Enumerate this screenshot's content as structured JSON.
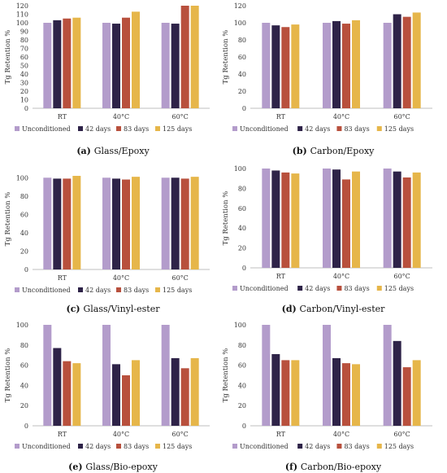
{
  "colors": {
    "Unconditioned": "#b39ccb",
    "42 days": "#2e2348",
    "83 days": "#b8503d",
    "125 days": "#e6b64a",
    "gridline": "#d9d9d9",
    "axis": "#bfbfbf"
  },
  "chart_data": [
    {
      "type": "bar",
      "panel_letter": "(a)",
      "panel_name": "Glass/Epoxy",
      "ylabel": "Tg Retention %",
      "categories": [
        "RT",
        "40°C",
        "60°C"
      ],
      "ylim": [
        0,
        120
      ],
      "yticks": [
        0,
        10,
        20,
        30,
        40,
        50,
        60,
        70,
        80,
        90,
        100,
        110,
        120
      ],
      "grid": false,
      "legend_position": "bottom",
      "series": [
        {
          "name": "Unconditioned",
          "values": [
            100,
            100,
            100
          ]
        },
        {
          "name": "42 days",
          "values": [
            103,
            99,
            99
          ]
        },
        {
          "name": "83 days",
          "values": [
            105,
            106,
            125
          ]
        },
        {
          "name": "125 days",
          "values": [
            106,
            113,
            122
          ]
        }
      ]
    },
    {
      "type": "bar",
      "panel_letter": "(b)",
      "panel_name": "Carbon/Epoxy",
      "ylabel": "Tg Retention %",
      "categories": [
        "RT",
        "40°C",
        "60°C"
      ],
      "ylim": [
        0,
        120
      ],
      "yticks": [
        0,
        20,
        40,
        60,
        80,
        100,
        120
      ],
      "grid": false,
      "legend_position": "bottom",
      "series": [
        {
          "name": "Unconditioned",
          "values": [
            100,
            100,
            100
          ]
        },
        {
          "name": "42 days",
          "values": [
            97,
            102,
            110
          ]
        },
        {
          "name": "83 days",
          "values": [
            95,
            99,
            107
          ]
        },
        {
          "name": "125 days",
          "values": [
            98,
            103,
            112
          ]
        }
      ]
    },
    {
      "type": "bar",
      "panel_letter": "(c)",
      "panel_name": "Glass/Vinyl-ester",
      "ylabel": "Tg Retention %",
      "categories": [
        "RT",
        "40°C",
        "60°C"
      ],
      "ylim": [
        0,
        110
      ],
      "yticks": [
        0,
        20,
        40,
        60,
        80,
        100
      ],
      "grid": false,
      "legend_position": "bottom",
      "series": [
        {
          "name": "Unconditioned",
          "values": [
            100,
            100,
            100
          ]
        },
        {
          "name": "42 days",
          "values": [
            99,
            99,
            100
          ]
        },
        {
          "name": "83 days",
          "values": [
            99,
            98,
            99
          ]
        },
        {
          "name": "125 days",
          "values": [
            102,
            101,
            101
          ]
        }
      ]
    },
    {
      "type": "bar",
      "panel_letter": "(d)",
      "panel_name": "Carbon/Vinyl-ester",
      "ylabel": "Tg Retention %",
      "categories": [
        "RT",
        "40°C",
        "60°C"
      ],
      "ylim": [
        0,
        100
      ],
      "yticks": [
        0,
        20,
        40,
        60,
        80,
        100
      ],
      "grid": false,
      "legend_position": "bottom",
      "series": [
        {
          "name": "Unconditioned",
          "values": [
            100,
            100,
            100
          ]
        },
        {
          "name": "42 days",
          "values": [
            98,
            99,
            97
          ]
        },
        {
          "name": "83 days",
          "values": [
            96,
            89,
            91
          ]
        },
        {
          "name": "125 days",
          "values": [
            95,
            97,
            96
          ]
        }
      ]
    },
    {
      "type": "bar",
      "panel_letter": "(e)",
      "panel_name": "Glass/Bio-epoxy",
      "ylabel": "Tg Retention %",
      "categories": [
        "RT",
        "40°C",
        "60°C"
      ],
      "ylim": [
        0,
        100
      ],
      "yticks": [
        0,
        20,
        40,
        60,
        80,
        100
      ],
      "grid": false,
      "legend_position": "bottom",
      "series": [
        {
          "name": "Unconditioned",
          "values": [
            100,
            100,
            100
          ]
        },
        {
          "name": "42 days",
          "values": [
            77,
            61,
            67
          ]
        },
        {
          "name": "83 days",
          "values": [
            64,
            50,
            57
          ]
        },
        {
          "name": "125 days",
          "values": [
            62,
            65,
            67
          ]
        }
      ]
    },
    {
      "type": "bar",
      "panel_letter": "(f)",
      "panel_name": "Carbon/Bio-epoxy",
      "ylabel": "Tg Retention %",
      "categories": [
        "RT",
        "40°C",
        "60°C"
      ],
      "ylim": [
        0,
        100
      ],
      "yticks": [
        0,
        20,
        40,
        60,
        80,
        100
      ],
      "grid": false,
      "legend_position": "bottom",
      "series": [
        {
          "name": "Unconditioned",
          "values": [
            100,
            100,
            100
          ]
        },
        {
          "name": "42 days",
          "values": [
            71,
            67,
            84
          ]
        },
        {
          "name": "83 days",
          "values": [
            65,
            62,
            58
          ]
        },
        {
          "name": "125 days",
          "values": [
            65,
            61,
            65
          ]
        }
      ]
    }
  ]
}
